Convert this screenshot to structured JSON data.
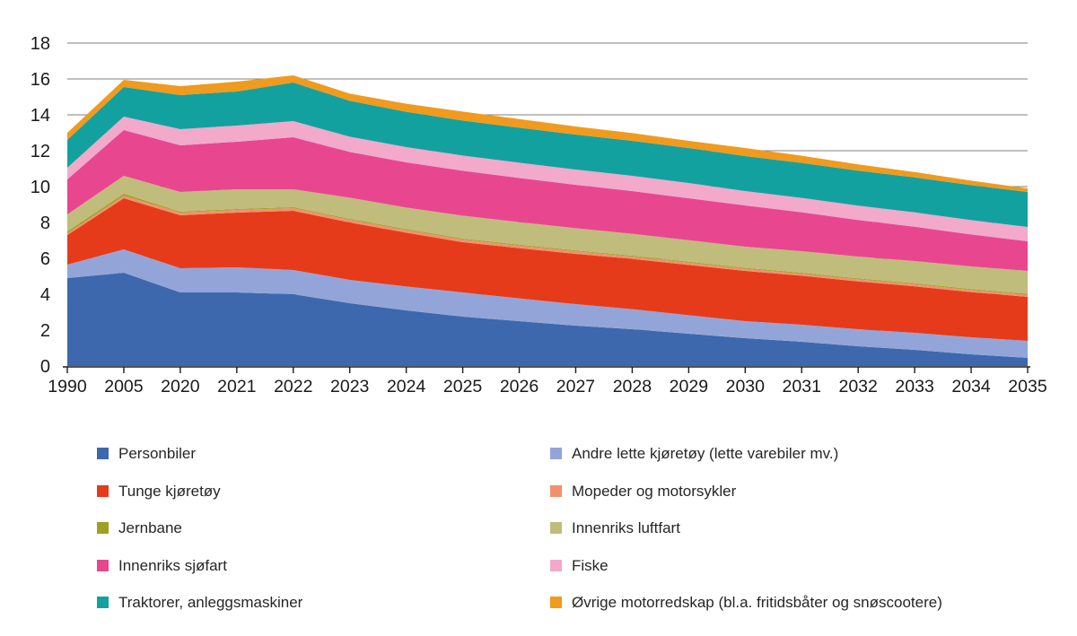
{
  "page": {
    "background": "#ffffff"
  },
  "chart_data": {
    "type": "area",
    "stacked": true,
    "title": "",
    "xlabel": "",
    "ylabel": "",
    "ylim": [
      0,
      18
    ],
    "ytick_step": 2,
    "grid": "horizontal",
    "gridline_color": "#7f7f7f",
    "axis_color": "#1a1a1a",
    "legend_position": "bottom-two-columns",
    "categories": [
      "1990",
      "2005",
      "2020",
      "2021",
      "2022",
      "2023",
      "2024",
      "2025",
      "2026",
      "2027",
      "2028",
      "2029",
      "2030",
      "2031",
      "2032",
      "2033",
      "2034",
      "2035"
    ],
    "series": [
      {
        "name": "Personbiler",
        "color": "#3D68AE",
        "values": [
          4.9,
          5.2,
          4.1,
          4.1,
          4.0,
          3.5,
          3.1,
          2.75,
          2.5,
          2.25,
          2.05,
          1.8,
          1.55,
          1.35,
          1.1,
          0.9,
          0.65,
          0.45
        ]
      },
      {
        "name": "Andre lette kjøretøy (lette varebiler mv.)",
        "color": "#93A5D8",
        "values": [
          0.75,
          1.3,
          1.35,
          1.4,
          1.35,
          1.3,
          1.33,
          1.35,
          1.27,
          1.2,
          1.12,
          1.03,
          0.95,
          0.95,
          0.95,
          0.95,
          0.95,
          0.95
        ]
      },
      {
        "name": "Tunge kjøretøy",
        "color": "#E63B1A",
        "values": [
          1.65,
          2.85,
          2.95,
          3.05,
          3.3,
          3.2,
          3.0,
          2.8,
          2.8,
          2.8,
          2.8,
          2.8,
          2.8,
          2.73,
          2.66,
          2.59,
          2.52,
          2.45
        ]
      },
      {
        "name": "Mopeder og motorsykler",
        "color": "#F0916C",
        "values": [
          0.1,
          0.15,
          0.15,
          0.15,
          0.15,
          0.15,
          0.15,
          0.15,
          0.14,
          0.14,
          0.13,
          0.13,
          0.12,
          0.12,
          0.12,
          0.12,
          0.12,
          0.12
        ]
      },
      {
        "name": "Jernbane",
        "color": "#9FA01E",
        "values": [
          0.1,
          0.1,
          0.05,
          0.05,
          0.05,
          0.05,
          0.05,
          0.05,
          0.05,
          0.05,
          0.05,
          0.05,
          0.05,
          0.05,
          0.05,
          0.05,
          0.05,
          0.05
        ]
      },
      {
        "name": "Innenriks luftfart",
        "color": "#C0BC7C",
        "values": [
          0.95,
          1.0,
          1.1,
          1.1,
          1.0,
          1.18,
          1.2,
          1.28,
          1.26,
          1.24,
          1.22,
          1.2,
          1.18,
          1.2,
          1.22,
          1.24,
          1.26,
          1.28
        ]
      },
      {
        "name": "Innenriks sjøfart",
        "color": "#E8478F",
        "values": [
          1.95,
          2.55,
          2.6,
          2.65,
          2.9,
          2.55,
          2.52,
          2.5,
          2.46,
          2.42,
          2.38,
          2.34,
          2.3,
          2.17,
          2.04,
          1.91,
          1.78,
          1.65
        ]
      },
      {
        "name": "Fiske",
        "color": "#F2A9CA",
        "values": [
          0.65,
          0.75,
          0.9,
          0.9,
          0.9,
          0.85,
          0.85,
          0.85,
          0.85,
          0.85,
          0.85,
          0.85,
          0.8,
          0.8,
          0.8,
          0.8,
          0.8,
          0.8
        ]
      },
      {
        "name": "Traktorer, anleggsmaskiner",
        "color": "#13A1A0",
        "values": [
          1.55,
          1.65,
          1.9,
          1.9,
          2.15,
          2.0,
          1.97,
          1.95,
          1.95,
          1.95,
          1.95,
          1.95,
          1.95,
          1.95,
          1.95,
          1.95,
          1.95,
          1.95
        ]
      },
      {
        "name": "Øvrige motorredskap (bl.a. fritidsbåter og snøscootere)",
        "color": "#F09A1E",
        "values": [
          0.4,
          0.4,
          0.5,
          0.55,
          0.4,
          0.4,
          0.45,
          0.5,
          0.48,
          0.45,
          0.43,
          0.4,
          0.45,
          0.4,
          0.35,
          0.3,
          0.25,
          0.2
        ]
      }
    ],
    "legend_columns": [
      [
        0,
        2,
        4,
        6,
        8
      ],
      [
        1,
        3,
        5,
        7,
        9
      ]
    ]
  }
}
